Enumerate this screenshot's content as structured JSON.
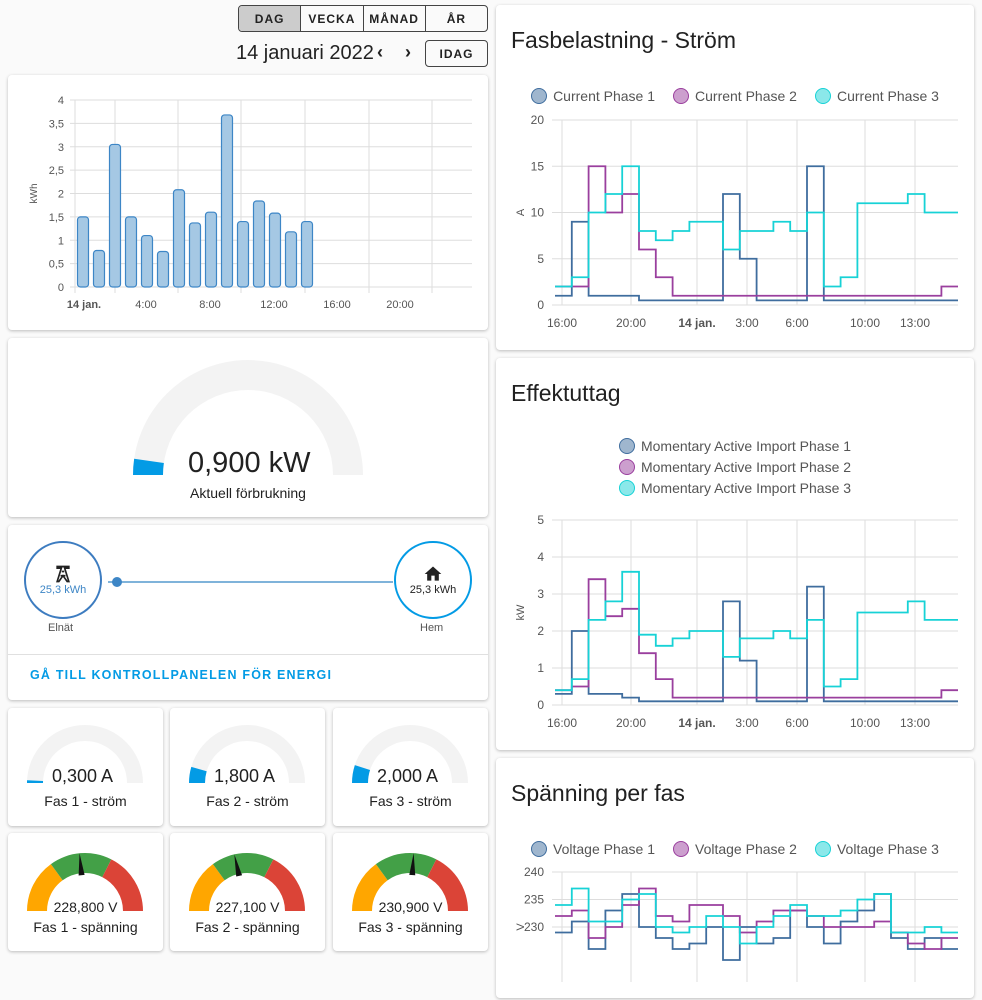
{
  "period": {
    "tabs": [
      "DAG",
      "VECKA",
      "MÅNAD",
      "ÅR"
    ],
    "active": 0,
    "date": "14 januari 2022",
    "prev": "‹",
    "next": "›",
    "today": "IDAG"
  },
  "colors": {
    "phase1": "#3f6d9e",
    "phase2": "#9a3f9e",
    "phase3": "#17d2d6",
    "bar": "#a5c8e4",
    "barStroke": "#3d86c6",
    "accent": "#039be5"
  },
  "energy_chart": {
    "chart_data": {
      "type": "bar",
      "ylabel": "kWh",
      "ylim": [
        0,
        4
      ],
      "yticks": [
        "0",
        "0,5",
        "1",
        "1,5",
        "2",
        "2,5",
        "3",
        "3,5",
        "4"
      ],
      "xticks": [
        "14 jan.",
        "4:00",
        "8:00",
        "12:00",
        "16:00",
        "20:00"
      ],
      "categories": [
        "00",
        "01",
        "02",
        "03",
        "04",
        "05",
        "06",
        "07",
        "08",
        "09",
        "10",
        "11",
        "12",
        "13",
        "14"
      ],
      "values": [
        1.5,
        0.78,
        3.05,
        1.5,
        1.1,
        0.76,
        2.08,
        1.37,
        1.6,
        3.68,
        1.4,
        1.84,
        1.58,
        1.18,
        1.4
      ]
    }
  },
  "power_gauge": {
    "value": "0,900 kW",
    "label": "Aktuell förbrukning",
    "level": 0.045
  },
  "flow": {
    "grid_value": "25,3 kWh",
    "grid_label": "Elnät",
    "home_value": "25,3 kWh",
    "home_label": "Hem",
    "link": "GÅ TILL KONTROLLPANELEN FÖR ENERGI"
  },
  "current_gauges": [
    {
      "value": "0,300 A",
      "label": "Fas 1 - ström",
      "level": 0.015
    },
    {
      "value": "1,800 A",
      "label": "Fas 2 - ström",
      "level": 0.09
    },
    {
      "value": "2,000 A",
      "label": "Fas 3 - ström",
      "level": 0.1
    }
  ],
  "voltage_gauges": [
    {
      "value": "228,800 V",
      "label": "Fas 1 - spänning",
      "level": 0.47
    },
    {
      "value": "227,100 V",
      "label": "Fas 2 - spänning",
      "level": 0.43
    },
    {
      "value": "230,900 V",
      "label": "Fas 3 - spänning",
      "level": 0.52
    }
  ],
  "charts": [
    {
      "title": "Fasbelastning - Ström",
      "chart_data": {
        "type": "line",
        "ylabel": "A",
        "ylim": [
          0,
          20
        ],
        "yticks": [
          "0",
          "5",
          "10",
          "15",
          "20"
        ],
        "xticks": [
          "16:00",
          "20:00",
          "14 jan.",
          "3:00",
          "6:00",
          "10:00",
          "13:00"
        ],
        "x": [
          "16:00",
          "17:00",
          "18:00",
          "19:00",
          "20:00",
          "21:00",
          "22:00",
          "23:00",
          "00:00",
          "01:00",
          "02:00",
          "03:00",
          "04:00",
          "05:00",
          "06:00",
          "07:00",
          "08:00",
          "09:00",
          "10:00",
          "11:00",
          "12:00",
          "13:00",
          "14:00",
          "15:00"
        ],
        "series": [
          {
            "name": "Current Phase 1",
            "values": [
              1,
              9,
              1,
              1,
              1,
              0.5,
              0.5,
              0.5,
              0.5,
              0.5,
              12,
              5,
              0.5,
              0.5,
              0.5,
              15,
              0.5,
              0.5,
              0.5,
              0.5,
              0.5,
              0.5,
              0.5,
              0.5
            ]
          },
          {
            "name": "Current Phase 2",
            "values": [
              2,
              2,
              15,
              10,
              12,
              6,
              3,
              1,
              1,
              1,
              1,
              1,
              1,
              1,
              1,
              1,
              1,
              1,
              1,
              1,
              1,
              1,
              1,
              2
            ]
          },
          {
            "name": "Current Phase 3",
            "values": [
              2,
              3,
              10,
              12,
              15,
              8,
              7,
              8,
              9,
              9,
              6,
              8,
              8,
              9,
              8,
              10,
              2,
              3,
              11,
              11,
              11,
              12,
              10,
              10
            ]
          }
        ]
      }
    },
    {
      "title": "Effektuttag",
      "chart_data": {
        "type": "line",
        "ylabel": "kW",
        "ylim": [
          0,
          5
        ],
        "yticks": [
          "0",
          "1",
          "2",
          "3",
          "4",
          "5"
        ],
        "xticks": [
          "16:00",
          "20:00",
          "14 jan.",
          "3:00",
          "6:00",
          "10:00",
          "13:00"
        ],
        "x": [
          "16:00",
          "17:00",
          "18:00",
          "19:00",
          "20:00",
          "21:00",
          "22:00",
          "23:00",
          "00:00",
          "01:00",
          "02:00",
          "03:00",
          "04:00",
          "05:00",
          "06:00",
          "07:00",
          "08:00",
          "09:00",
          "10:00",
          "11:00",
          "12:00",
          "13:00",
          "14:00",
          "15:00"
        ],
        "series": [
          {
            "name": "Momentary Active Import Phase 1",
            "values": [
              0.3,
              2,
              0.3,
              0.3,
              0.2,
              0.1,
              0.1,
              0.1,
              0.1,
              0.1,
              2.8,
              1.2,
              0.1,
              0.1,
              0.1,
              3.2,
              0.1,
              0.1,
              0.1,
              0.1,
              0.1,
              0.1,
              0.1,
              0.1
            ]
          },
          {
            "name": "Momentary Active Import Phase 2",
            "values": [
              0.4,
              0.5,
              3.4,
              2.4,
              2.6,
              1.4,
              0.7,
              0.2,
              0.2,
              0.2,
              0.2,
              0.2,
              0.2,
              0.2,
              0.2,
              0.2,
              0.2,
              0.2,
              0.2,
              0.2,
              0.2,
              0.2,
              0.2,
              0.4
            ]
          },
          {
            "name": "Momentary Active Import Phase 3",
            "values": [
              0.4,
              0.7,
              2.3,
              2.8,
              3.6,
              1.9,
              1.6,
              1.8,
              2,
              2,
              1.3,
              1.8,
              1.8,
              2,
              1.8,
              2.3,
              0.5,
              0.7,
              2.5,
              2.5,
              2.5,
              2.8,
              2.3,
              2.3
            ]
          }
        ]
      }
    },
    {
      "title": "Spänning per fas",
      "chart_data": {
        "type": "line",
        "ylabel": "V",
        "ylim": [
          220,
          240
        ],
        "yticks": [
          "230",
          "235",
          "240"
        ],
        "x": [
          "16:00",
          "17:00",
          "18:00",
          "19:00",
          "20:00",
          "21:00",
          "22:00",
          "23:00",
          "00:00",
          "01:00",
          "02:00",
          "03:00",
          "04:00",
          "05:00",
          "06:00",
          "07:00",
          "08:00",
          "09:00",
          "10:00",
          "11:00",
          "12:00",
          "13:00",
          "14:00",
          "15:00"
        ],
        "series": [
          {
            "name": "Voltage Phase 1",
            "values": [
              229,
              231,
              226,
              233,
              236,
              230,
              228,
              226,
              227,
              230,
              224,
              230,
              227,
              228,
              233,
              230,
              227,
              231,
              233,
              236,
              228,
              226,
              228,
              226
            ]
          },
          {
            "name": "Voltage Phase 2",
            "values": [
              232,
              233,
              228,
              230,
              234,
              237,
              232,
              231,
              234,
              234,
              232,
              229,
              231,
              233,
              233,
              232,
              230,
              230,
              230,
              231,
              229,
              227,
              226,
              228
            ]
          },
          {
            "name": "Voltage Phase 3",
            "values": [
              234,
              237,
              231,
              231,
              235,
              236,
              230,
              229,
              230,
              232,
              230,
              227,
              230,
              232,
              234,
              232,
              232,
              233,
              235,
              236,
              229,
              229,
              230,
              229
            ]
          }
        ]
      }
    }
  ]
}
